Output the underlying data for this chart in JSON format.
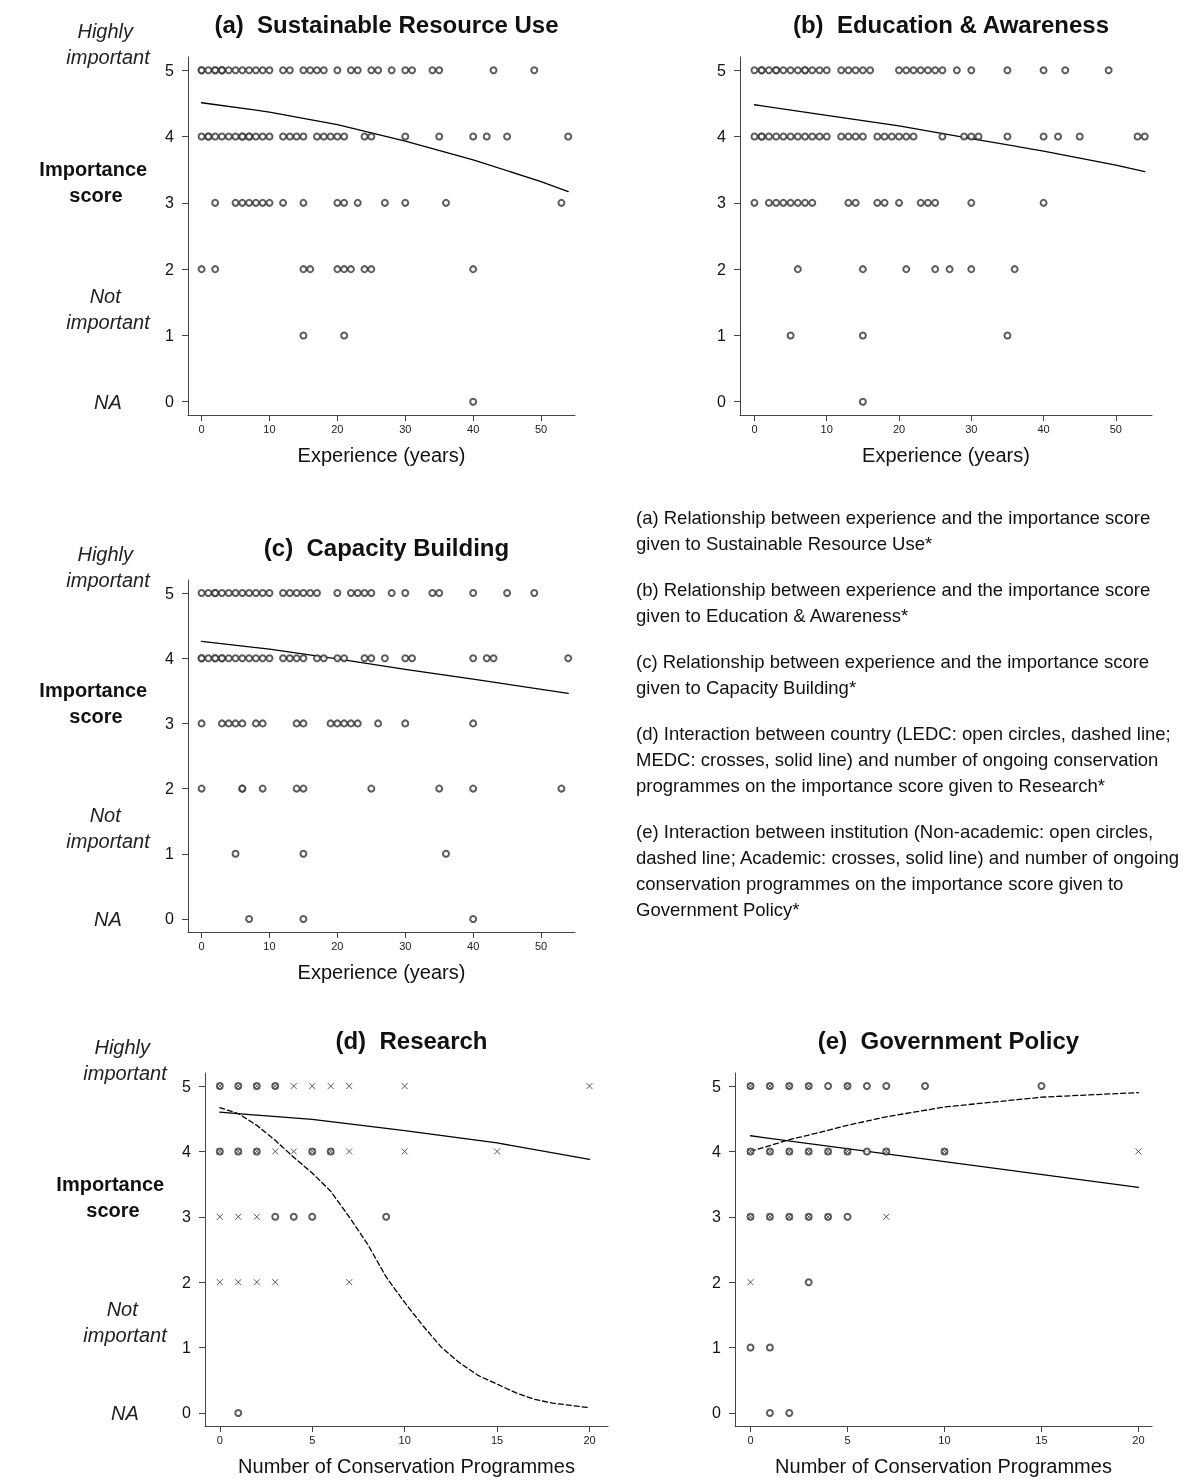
{
  "chart_data": [
    {
      "type": "scatter",
      "title": "(a)  Sustainable Resource Use",
      "xlabel": "Experience (years)",
      "ylabel": "Importance score",
      "grid": false,
      "xlim": [
        -2,
        55
      ],
      "ylim": [
        -0.2,
        5.2
      ],
      "xticks": [
        0,
        10,
        20,
        30,
        40,
        50
      ],
      "yticks": [
        0,
        1,
        2,
        3,
        4,
        5
      ],
      "annotations": [
        "Highly important",
        "Not important",
        "NA"
      ],
      "series": [
        {
          "type": "scatter",
          "marker": "circle",
          "color": "#333333",
          "x": [
            0,
            0,
            1,
            2,
            2,
            3,
            3,
            3,
            4,
            5,
            6,
            7,
            8,
            9,
            10,
            12,
            13,
            15,
            16,
            17,
            18,
            20,
            22,
            23,
            25,
            26,
            28,
            30,
            31,
            34,
            35,
            43,
            49,
            0,
            1,
            1,
            2,
            3,
            4,
            5,
            6,
            6,
            7,
            7,
            8,
            9,
            10,
            12,
            13,
            14,
            15,
            17,
            18,
            19,
            20,
            21,
            24,
            25,
            30,
            35,
            40,
            42,
            45,
            54,
            2,
            5,
            6,
            7,
            8,
            9,
            10,
            12,
            15,
            20,
            21,
            23,
            27,
            30,
            36,
            53,
            0,
            2,
            15,
            16,
            20,
            21,
            22,
            24,
            25,
            40,
            15,
            21,
            40
          ],
          "values": [
            5,
            5,
            5,
            5,
            5,
            5,
            5,
            5,
            5,
            5,
            5,
            5,
            5,
            5,
            5,
            5,
            5,
            5,
            5,
            5,
            5,
            5,
            5,
            5,
            5,
            5,
            5,
            5,
            5,
            5,
            5,
            5,
            5,
            4,
            4,
            4,
            4,
            4,
            4,
            4,
            4,
            4,
            4,
            4,
            4,
            4,
            4,
            4,
            4,
            4,
            4,
            4,
            4,
            4,
            4,
            4,
            4,
            4,
            4,
            4,
            4,
            4,
            4,
            4,
            3,
            3,
            3,
            3,
            3,
            3,
            3,
            3,
            3,
            3,
            3,
            3,
            3,
            3,
            3,
            3,
            2,
            2,
            2,
            2,
            2,
            2,
            2,
            2,
            2,
            2,
            1,
            1,
            0
          ]
        },
        {
          "type": "line",
          "marker": "none",
          "line_style": "solid",
          "color": "#000000",
          "x": [
            0,
            10,
            20,
            30,
            40,
            50,
            54
          ],
          "values": [
            4.51,
            4.37,
            4.18,
            3.93,
            3.65,
            3.32,
            3.17
          ]
        }
      ]
    },
    {
      "type": "scatter",
      "title": "(b)  Education & Awareness",
      "xlabel": "Experience (years)",
      "grid": false,
      "xlim": [
        -2,
        55
      ],
      "ylim": [
        -0.2,
        5.2
      ],
      "xticks": [
        0,
        10,
        20,
        30,
        40,
        50
      ],
      "yticks": [
        0,
        1,
        2,
        3,
        4,
        5
      ],
      "series": [
        {
          "type": "scatter",
          "marker": "circle",
          "color": "#333333",
          "x": [
            0,
            1,
            1,
            2,
            3,
            3,
            4,
            5,
            6,
            7,
            7,
            8,
            9,
            10,
            12,
            13,
            14,
            15,
            16,
            20,
            21,
            22,
            23,
            24,
            25,
            26,
            28,
            30,
            35,
            40,
            43,
            49,
            0,
            1,
            1,
            2,
            3,
            4,
            5,
            6,
            7,
            8,
            9,
            10,
            12,
            13,
            14,
            15,
            17,
            18,
            19,
            20,
            21,
            22,
            26,
            29,
            30,
            31,
            35,
            40,
            42,
            45,
            53,
            54,
            0,
            2,
            3,
            4,
            5,
            6,
            7,
            8,
            13,
            14,
            17,
            18,
            20,
            23,
            24,
            25,
            30,
            40,
            6,
            15,
            21,
            25,
            27,
            30,
            36,
            5,
            15,
            35,
            15
          ],
          "values": [
            5,
            5,
            5,
            5,
            5,
            5,
            5,
            5,
            5,
            5,
            5,
            5,
            5,
            5,
            5,
            5,
            5,
            5,
            5,
            5,
            5,
            5,
            5,
            5,
            5,
            5,
            5,
            5,
            5,
            5,
            5,
            5,
            4,
            4,
            4,
            4,
            4,
            4,
            4,
            4,
            4,
            4,
            4,
            4,
            4,
            4,
            4,
            4,
            4,
            4,
            4,
            4,
            4,
            4,
            4,
            4,
            4,
            4,
            4,
            4,
            4,
            4,
            4,
            4,
            3,
            3,
            3,
            3,
            3,
            3,
            3,
            3,
            3,
            3,
            3,
            3,
            3,
            3,
            3,
            3,
            3,
            3,
            2,
            2,
            2,
            2,
            2,
            2,
            2,
            1,
            1,
            1,
            0
          ]
        },
        {
          "type": "line",
          "marker": "none",
          "line_style": "solid",
          "color": "#000000",
          "x": [
            0,
            10,
            20,
            30,
            40,
            50,
            54
          ],
          "values": [
            4.48,
            4.32,
            4.16,
            3.97,
            3.78,
            3.57,
            3.47
          ]
        }
      ]
    },
    {
      "type": "scatter",
      "title": "(c)  Capacity Building",
      "xlabel": "Experience (years)",
      "ylabel": "Importance score",
      "grid": false,
      "xlim": [
        -2,
        55
      ],
      "ylim": [
        -0.2,
        5.2
      ],
      "xticks": [
        0,
        10,
        20,
        30,
        40,
        50
      ],
      "yticks": [
        0,
        1,
        2,
        3,
        4,
        5
      ],
      "annotations": [
        "Highly important",
        "Not important",
        "NA"
      ],
      "series": [
        {
          "type": "scatter",
          "marker": "circle",
          "color": "#333333",
          "x": [
            0,
            1,
            2,
            2,
            3,
            4,
            5,
            6,
            7,
            8,
            9,
            10,
            12,
            13,
            14,
            15,
            16,
            17,
            20,
            22,
            23,
            24,
            25,
            28,
            30,
            34,
            35,
            40,
            45,
            49,
            0,
            0,
            1,
            2,
            2,
            3,
            3,
            4,
            5,
            6,
            7,
            8,
            9,
            10,
            12,
            13,
            14,
            15,
            17,
            18,
            20,
            21,
            24,
            25,
            27,
            30,
            31,
            40,
            42,
            43,
            54,
            0,
            3,
            4,
            5,
            6,
            8,
            9,
            14,
            15,
            19,
            20,
            21,
            22,
            23,
            26,
            30,
            40,
            0,
            6,
            6,
            9,
            14,
            15,
            25,
            35,
            40,
            53,
            5,
            15,
            36,
            7,
            15,
            40
          ],
          "values": [
            5,
            5,
            5,
            5,
            5,
            5,
            5,
            5,
            5,
            5,
            5,
            5,
            5,
            5,
            5,
            5,
            5,
            5,
            5,
            5,
            5,
            5,
            5,
            5,
            5,
            5,
            5,
            5,
            5,
            5,
            4,
            4,
            4,
            4,
            4,
            4,
            4,
            4,
            4,
            4,
            4,
            4,
            4,
            4,
            4,
            4,
            4,
            4,
            4,
            4,
            4,
            4,
            4,
            4,
            4,
            4,
            4,
            4,
            4,
            4,
            4,
            3,
            3,
            3,
            3,
            3,
            3,
            3,
            3,
            3,
            3,
            3,
            3,
            3,
            3,
            3,
            3,
            3,
            2,
            2,
            2,
            2,
            2,
            2,
            2,
            2,
            2,
            2,
            1,
            1,
            1,
            0,
            0,
            0
          ]
        },
        {
          "type": "line",
          "marker": "none",
          "line_style": "solid",
          "color": "#000000",
          "x": [
            0,
            10,
            20,
            30,
            40,
            54
          ],
          "values": [
            4.26,
            4.14,
            3.99,
            3.83,
            3.68,
            3.46
          ]
        }
      ]
    },
    {
      "type": "other",
      "annotations": [
        "(a) Relationship between experience and the importance score given to Sustainable Resource Use*",
        "(b) Relationship between experience and the importance score given to Education & Awareness*",
        "(c) Relationship between experience and the importance score given to Capacity Building*",
        "(d) Interaction between country (LEDC: open circles, dashed line; MEDC: crosses, solid line) and number of ongoing conservation programmes on the importance score given to Research*",
        "(e) Interaction between institution (Non-academic: open circles, dashed line; Academic: crosses, solid line) and number of ongoing conservation programmes on the importance score given to Government Policy*"
      ]
    },
    {
      "type": "scatter",
      "title": "(d)  Research",
      "xlabel": "Number of Conservation Programmes",
      "ylabel": "Importance score",
      "grid": false,
      "xlim": [
        -0.8,
        21
      ],
      "ylim": [
        -0.2,
        5.2
      ],
      "xticks": [
        0,
        5,
        10,
        15,
        20
      ],
      "yticks": [
        0,
        1,
        2,
        3,
        4,
        5
      ],
      "annotations": [
        "Highly important",
        "Not important",
        "NA"
      ],
      "series": [
        {
          "type": "scatter",
          "marker": "circle",
          "color": "#333333",
          "x": [
            0,
            1,
            2,
            3,
            0,
            1,
            2,
            5,
            6,
            3,
            4,
            5,
            9,
            1
          ],
          "values": [
            5,
            5,
            5,
            5,
            4,
            4,
            4,
            4,
            4,
            3,
            3,
            3,
            3,
            0
          ]
        },
        {
          "type": "scatter",
          "marker": "cross",
          "color": "#333333",
          "x": [
            0,
            1,
            2,
            3,
            4,
            5,
            6,
            7,
            10,
            20,
            0,
            1,
            2,
            3,
            4,
            5,
            6,
            7,
            10,
            15,
            0,
            1,
            2,
            0,
            1,
            2,
            3,
            7
          ],
          "values": [
            5,
            5,
            5,
            5,
            5,
            5,
            5,
            5,
            5,
            5,
            4,
            4,
            4,
            4,
            4,
            4,
            4,
            4,
            4,
            4,
            3,
            3,
            3,
            2,
            2,
            2,
            2,
            2
          ]
        },
        {
          "type": "line",
          "marker": "none",
          "line_style": "dashed",
          "color": "#000000",
          "x": [
            0,
            1,
            2,
            3,
            4,
            5,
            6,
            7,
            8,
            9,
            10,
            11,
            12,
            13,
            14,
            15,
            16,
            17,
            18,
            20
          ],
          "values": [
            4.67,
            4.58,
            4.4,
            4.17,
            3.91,
            3.67,
            3.39,
            3.0,
            2.58,
            2.08,
            1.69,
            1.33,
            1.0,
            0.76,
            0.57,
            0.44,
            0.31,
            0.21,
            0.15,
            0.08
          ]
        },
        {
          "type": "line",
          "marker": "none",
          "line_style": "solid",
          "color": "#000000",
          "x": [
            0,
            5,
            10,
            15,
            20
          ],
          "values": [
            4.6,
            4.49,
            4.32,
            4.13,
            3.88
          ]
        }
      ]
    },
    {
      "type": "scatter",
      "title": "(e)  Government Policy",
      "xlabel": "Number of Conservation Programmes",
      "grid": false,
      "xlim": [
        -0.8,
        20.7
      ],
      "ylim": [
        -0.2,
        5.2
      ],
      "xticks": [
        0,
        5,
        10,
        15,
        20
      ],
      "yticks": [
        0,
        1,
        2,
        3,
        4,
        5
      ],
      "series": [
        {
          "type": "scatter",
          "marker": "circle",
          "color": "#333333",
          "x": [
            0,
            1,
            2,
            3,
            4,
            5,
            6,
            7,
            9,
            15,
            0,
            1,
            2,
            3,
            4,
            5,
            6,
            7,
            10,
            0,
            1,
            2,
            3,
            4,
            5,
            3,
            0,
            1,
            1,
            2
          ],
          "values": [
            5,
            5,
            5,
            5,
            5,
            5,
            5,
            5,
            5,
            5,
            4,
            4,
            4,
            4,
            4,
            4,
            4,
            4,
            4,
            3,
            3,
            3,
            3,
            3,
            3,
            2,
            1,
            1,
            0,
            0
          ]
        },
        {
          "type": "scatter",
          "marker": "cross",
          "color": "#333333",
          "x": [
            0,
            1,
            2,
            3,
            5,
            0,
            1,
            2,
            3,
            4,
            5,
            7,
            10,
            20,
            0,
            1,
            2,
            3,
            4,
            7,
            0
          ],
          "values": [
            5,
            5,
            5,
            5,
            5,
            4,
            4,
            4,
            4,
            4,
            4,
            4,
            4,
            4,
            3,
            3,
            3,
            3,
            3,
            3,
            2
          ]
        },
        {
          "type": "line",
          "marker": "none",
          "line_style": "dashed",
          "color": "#000000",
          "x": [
            0,
            2,
            3,
            5,
            7,
            10,
            15,
            20
          ],
          "values": [
            4.0,
            4.18,
            4.25,
            4.4,
            4.53,
            4.68,
            4.83,
            4.9
          ]
        },
        {
          "type": "line",
          "marker": "none",
          "line_style": "solid",
          "color": "#000000",
          "x": [
            0,
            20
          ],
          "values": [
            4.24,
            3.45
          ]
        }
      ]
    }
  ]
}
